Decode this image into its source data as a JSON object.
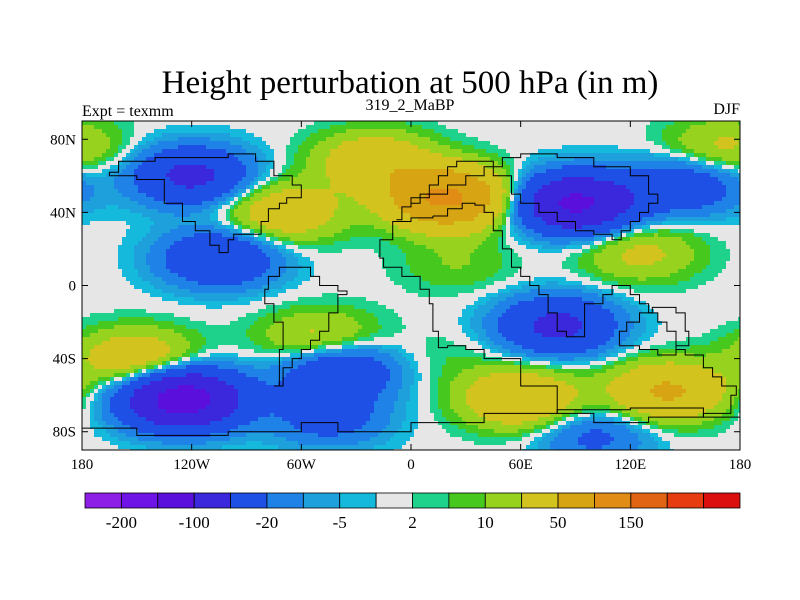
{
  "chart_data": {
    "type": "heatmap",
    "title": "Height perturbation at 500 hPa (in m)",
    "left_label": "Expt = texmm",
    "center_label": "319_2_MaBP",
    "right_label": "DJF",
    "variable": "geopotential height perturbation",
    "units": "m",
    "pressure_level_hPa": 500,
    "xlim": [
      -180,
      180
    ],
    "ylim": [
      -90,
      90
    ],
    "x_ticks": [
      {
        "value": -180,
        "label": "180"
      },
      {
        "value": -120,
        "label": "120W"
      },
      {
        "value": -60,
        "label": "60W"
      },
      {
        "value": 0,
        "label": "0"
      },
      {
        "value": 60,
        "label": "60E"
      },
      {
        "value": 120,
        "label": "120E"
      },
      {
        "value": 180,
        "label": "180"
      }
    ],
    "y_ticks": [
      {
        "value": 80,
        "label": "80N"
      },
      {
        "value": 40,
        "label": "40N"
      },
      {
        "value": 0,
        "label": "0"
      },
      {
        "value": -40,
        "label": "40S"
      },
      {
        "value": -80,
        "label": "80S"
      }
    ],
    "colorbar": {
      "colors": [
        "#8c1ee6",
        "#6e14e6",
        "#5a0fdc",
        "#3c28dc",
        "#1e50e6",
        "#1e82e6",
        "#1ea0dc",
        "#14b9dc",
        "#e6e6e6",
        "#1ed28c",
        "#46c81e",
        "#96d21e",
        "#d2c31e",
        "#d7a514",
        "#e18c14",
        "#e16414",
        "#e63c0f",
        "#dc0f0f"
      ],
      "tick_labels": [
        {
          "boundary": 1,
          "label": "-200"
        },
        {
          "boundary": 3,
          "label": "-100"
        },
        {
          "boundary": 5,
          "label": "-20"
        },
        {
          "boundary": 7,
          "label": "-5"
        },
        {
          "boundary": 9,
          "label": "2"
        },
        {
          "boundary": 11,
          "label": "10"
        },
        {
          "boundary": 13,
          "label": "50"
        },
        {
          "boundary": 15,
          "label": "150"
        }
      ]
    },
    "field_lobes": [
      {
        "lon": -120,
        "lat": 60,
        "value": -60
      },
      {
        "lon": -70,
        "lat": 40,
        "value": 40
      },
      {
        "lon": 20,
        "lat": 48,
        "value": 110
      },
      {
        "lon": -20,
        "lat": 68,
        "value": 40
      },
      {
        "lon": 90,
        "lat": 45,
        "value": -110
      },
      {
        "lon": 150,
        "lat": 55,
        "value": -40
      },
      {
        "lon": 170,
        "lat": 75,
        "value": 25
      },
      {
        "lon": -105,
        "lat": 15,
        "value": -50
      },
      {
        "lon": 25,
        "lat": 12,
        "value": 10
      },
      {
        "lon": 125,
        "lat": 18,
        "value": 25
      },
      {
        "lon": -150,
        "lat": -40,
        "value": 40
      },
      {
        "lon": -50,
        "lat": -30,
        "value": 30
      },
      {
        "lon": 80,
        "lat": -22,
        "value": -60
      },
      {
        "lon": 20,
        "lat": -40,
        "value": 5
      },
      {
        "lon": -125,
        "lat": -62,
        "value": -130
      },
      {
        "lon": -40,
        "lat": -46,
        "value": -50
      },
      {
        "lon": 60,
        "lat": -62,
        "value": 50
      },
      {
        "lon": 140,
        "lat": -58,
        "value": 55
      },
      {
        "lon": -45,
        "lat": -72,
        "value": -30
      },
      {
        "lon": 100,
        "lat": -82,
        "value": -25
      }
    ],
    "land_outlines": [
      [
        [
          12,
          38
        ],
        [
          20,
          42
        ],
        [
          28,
          45
        ],
        [
          35,
          44
        ],
        [
          40,
          40
        ],
        [
          45,
          30
        ],
        [
          50,
          20
        ],
        [
          55,
          10
        ],
        [
          60,
          5
        ],
        [
          65,
          0
        ],
        [
          70,
          -5
        ],
        [
          75,
          -15
        ],
        [
          80,
          -25
        ],
        [
          85,
          -28
        ],
        [
          95,
          -10
        ],
        [
          105,
          -5
        ],
        [
          110,
          0
        ],
        [
          120,
          -5
        ],
        [
          125,
          -10
        ],
        [
          130,
          -15
        ],
        [
          135,
          -20
        ],
        [
          140,
          -25
        ],
        [
          145,
          -35
        ],
        [
          150,
          -38
        ],
        [
          160,
          -45
        ],
        [
          165,
          -50
        ],
        [
          170,
          -55
        ],
        [
          178,
          -60
        ],
        [
          175,
          -70
        ],
        [
          160,
          -72
        ],
        [
          130,
          -75
        ],
        [
          100,
          -70
        ],
        [
          80,
          -55
        ],
        [
          60,
          -40
        ],
        [
          40,
          -35
        ],
        [
          30,
          -33
        ],
        [
          20,
          -34
        ],
        [
          15,
          -25
        ],
        [
          12,
          -10
        ],
        [
          10,
          -2
        ],
        [
          5,
          5
        ],
        [
          -5,
          10
        ],
        [
          -15,
          15
        ],
        [
          -17,
          25
        ],
        [
          -10,
          35
        ],
        [
          0,
          37
        ],
        [
          12,
          38
        ]
      ],
      [
        [
          -8,
          36
        ],
        [
          -5,
          43
        ],
        [
          0,
          45
        ],
        [
          5,
          50
        ],
        [
          10,
          55
        ],
        [
          15,
          60
        ],
        [
          20,
          65
        ],
        [
          25,
          68
        ],
        [
          35,
          68
        ],
        [
          45,
          60
        ],
        [
          55,
          50
        ],
        [
          60,
          45
        ],
        [
          70,
          40
        ],
        [
          80,
          35
        ],
        [
          90,
          30
        ],
        [
          100,
          28
        ],
        [
          110,
          25
        ],
        [
          115,
          30
        ],
        [
          120,
          35
        ],
        [
          125,
          40
        ],
        [
          130,
          45
        ],
        [
          135,
          50
        ],
        [
          130,
          60
        ],
        [
          120,
          65
        ],
        [
          100,
          70
        ],
        [
          80,
          72
        ],
        [
          60,
          70
        ],
        [
          50,
          65
        ],
        [
          40,
          60
        ],
        [
          30,
          55
        ],
        [
          20,
          50
        ],
        [
          10,
          48
        ],
        [
          0,
          45
        ]
      ],
      [
        [
          -35,
          -5
        ],
        [
          -40,
          -15
        ],
        [
          -45,
          -25
        ],
        [
          -50,
          -30
        ],
        [
          -55,
          -35
        ],
        [
          -60,
          -40
        ],
        [
          -65,
          -45
        ],
        [
          -70,
          -55
        ],
        [
          -75,
          -55
        ],
        [
          -72,
          -45
        ],
        [
          -72,
          -35
        ],
        [
          -70,
          -20
        ],
        [
          -75,
          -10
        ],
        [
          -80,
          -2
        ],
        [
          -78,
          5
        ],
        [
          -72,
          10
        ],
        [
          -62,
          10
        ],
        [
          -55,
          5
        ],
        [
          -50,
          0
        ],
        [
          -40,
          -3
        ],
        [
          -35,
          -5
        ]
      ],
      [
        [
          -100,
          18
        ],
        [
          -105,
          22
        ],
        [
          -110,
          30
        ],
        [
          -118,
          35
        ],
        [
          -125,
          45
        ],
        [
          -135,
          58
        ],
        [
          -150,
          60
        ],
        [
          -165,
          62
        ],
        [
          -160,
          68
        ],
        [
          -140,
          70
        ],
        [
          -120,
          70
        ],
        [
          -100,
          72
        ],
        [
          -85,
          68
        ],
        [
          -75,
          60
        ],
        [
          -65,
          55
        ],
        [
          -60,
          48
        ],
        [
          -68,
          45
        ],
        [
          -72,
          42
        ],
        [
          -78,
          35
        ],
        [
          -82,
          28
        ],
        [
          -90,
          28
        ],
        [
          -97,
          25
        ],
        [
          -100,
          18
        ]
      ],
      [
        [
          140,
          -12
        ],
        [
          145,
          -15
        ],
        [
          150,
          -25
        ],
        [
          152,
          -33
        ],
        [
          145,
          -38
        ],
        [
          135,
          -35
        ],
        [
          125,
          -33
        ],
        [
          116,
          -33
        ],
        [
          114,
          -25
        ],
        [
          118,
          -20
        ],
        [
          125,
          -15
        ],
        [
          132,
          -12
        ],
        [
          140,
          -12
        ]
      ],
      [
        [
          -180,
          -78
        ],
        [
          -150,
          -82
        ],
        [
          -100,
          -80
        ],
        [
          -60,
          -75
        ],
        [
          -40,
          -80
        ],
        [
          0,
          -75
        ],
        [
          40,
          -70
        ],
        [
          80,
          -68
        ],
        [
          120,
          -67
        ],
        [
          160,
          -72
        ],
        [
          180,
          -78
        ]
      ]
    ]
  }
}
